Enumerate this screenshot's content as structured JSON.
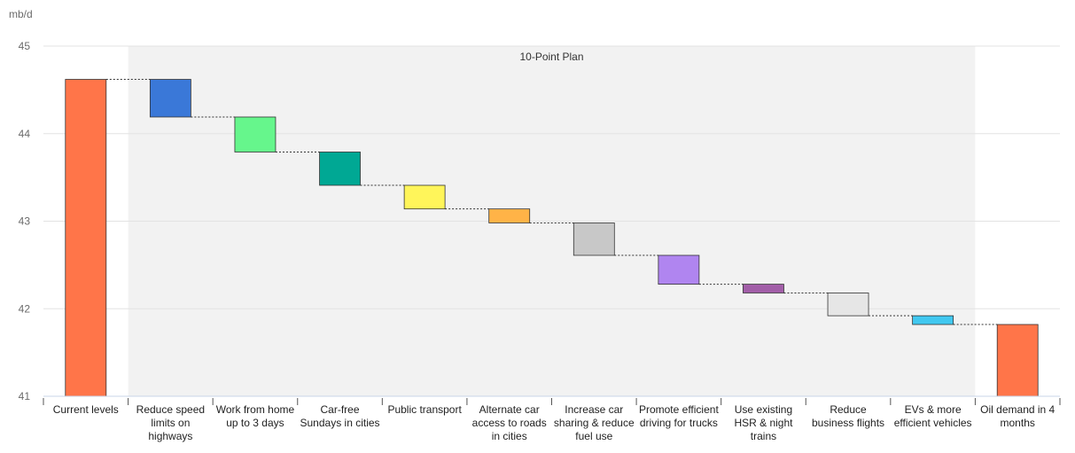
{
  "chart_data": {
    "type": "bar",
    "subtype": "waterfall",
    "unit_label": "mb/d",
    "band_label": "10-Point Plan",
    "ylim": [
      41,
      45
    ],
    "yticks": [
      "41",
      "42",
      "43",
      "44",
      "45"
    ],
    "grid": true,
    "categories": [
      "Current levels",
      "Reduce speed limits on highways",
      "Work from home up to 3 days",
      "Car-free Sundays in cities",
      "Public transport",
      "Alternate car access to roads in cities",
      "Increase car sharing & reduce fuel use",
      "Promote efficient driving for trucks",
      "Use existing HSR & night trains",
      "Reduce business flights",
      "EVs & more efficient vehicles",
      "Oil demand in 4 months"
    ],
    "bars": [
      {
        "kind": "total",
        "start": 41,
        "end": 44.62,
        "color": "#ff7549"
      },
      {
        "kind": "step",
        "start": 44.62,
        "end": 44.19,
        "color": "#3a78d8"
      },
      {
        "kind": "step",
        "start": 44.19,
        "end": 43.79,
        "color": "#66f68c"
      },
      {
        "kind": "step",
        "start": 43.79,
        "end": 43.41,
        "color": "#00a894"
      },
      {
        "kind": "step",
        "start": 43.41,
        "end": 43.14,
        "color": "#fff55a"
      },
      {
        "kind": "step",
        "start": 43.14,
        "end": 42.98,
        "color": "#ffb347"
      },
      {
        "kind": "step",
        "start": 42.98,
        "end": 42.61,
        "color": "#c8c8c8"
      },
      {
        "kind": "step",
        "start": 42.61,
        "end": 42.28,
        "color": "#b085f0"
      },
      {
        "kind": "step",
        "start": 42.28,
        "end": 42.18,
        "color": "#a25ea8"
      },
      {
        "kind": "step",
        "start": 42.18,
        "end": 41.92,
        "color": "#e6e6e6"
      },
      {
        "kind": "step",
        "start": 41.92,
        "end": 41.82,
        "color": "#41c8f0"
      },
      {
        "kind": "total",
        "start": 41,
        "end": 41.82,
        "color": "#ff7549"
      }
    ]
  }
}
